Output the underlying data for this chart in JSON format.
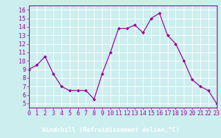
{
  "x": [
    0,
    1,
    2,
    3,
    4,
    5,
    6,
    7,
    8,
    9,
    10,
    11,
    12,
    13,
    14,
    15,
    16,
    17,
    18,
    19,
    20,
    21,
    22,
    23
  ],
  "y": [
    9.0,
    9.5,
    10.5,
    8.5,
    7.0,
    6.5,
    6.5,
    6.5,
    5.5,
    8.5,
    11.0,
    13.8,
    13.8,
    14.2,
    13.3,
    15.0,
    15.6,
    13.0,
    12.0,
    10.0,
    7.8,
    7.0,
    6.5,
    5.0
  ],
  "xlim": [
    0,
    23
  ],
  "ylim": [
    4.5,
    16.5
  ],
  "yticks": [
    5,
    6,
    7,
    8,
    9,
    10,
    11,
    12,
    13,
    14,
    15,
    16
  ],
  "xticks": [
    0,
    1,
    2,
    3,
    4,
    5,
    6,
    7,
    8,
    9,
    10,
    11,
    12,
    13,
    14,
    15,
    16,
    17,
    18,
    19,
    20,
    21,
    22,
    23
  ],
  "xlabel": "Windchill (Refroidissement éolien,°C)",
  "line_color": "#990099",
  "marker": "D",
  "marker_size": 2.0,
  "bg_color": "#cceeee",
  "grid_color": "#ffffff",
  "axis_bg": "#993399",
  "tick_label_fontsize": 6.0,
  "xlabel_fontsize": 6.5,
  "ylabel_area_color": "#cceeee"
}
